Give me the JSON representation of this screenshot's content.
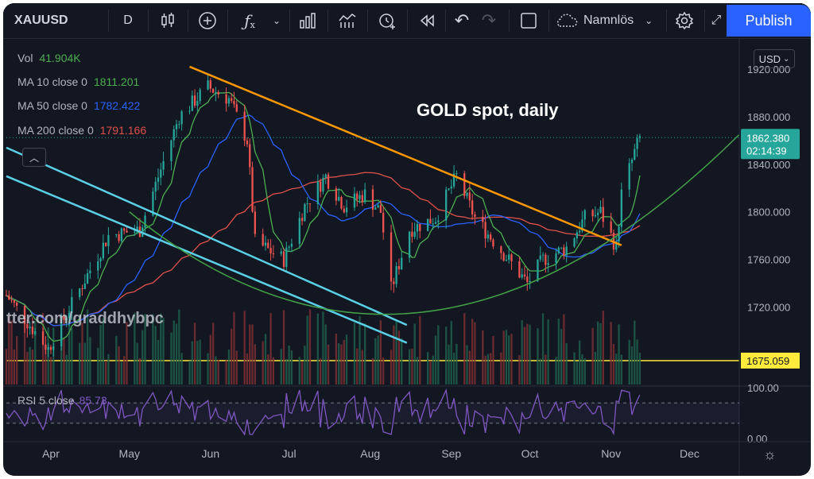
{
  "toolbar": {
    "symbol": "XAUUSD",
    "interval": "D",
    "layout_name": "Namnlös",
    "publish_label": "Publish",
    "icons": [
      "candles-icon",
      "add-compare-icon",
      "indicators-icon",
      "chevron-down-icon",
      "templates-icon",
      "alert-icon",
      "replay-icon",
      "undo-icon",
      "redo-icon",
      "fullscreen-icon",
      "cloud-icon",
      "settings-icon"
    ]
  },
  "legend": {
    "vol_label": "Vol",
    "vol_value": "41.904K",
    "ma10_label": "MA 10 close 0",
    "ma10_value": "1811.201",
    "ma50_label": "MA 50 close 0",
    "ma50_value": "1782.422",
    "ma200_label": "MA 200 close 0",
    "ma200_value": "1791.166",
    "rsi_label": "RSI 5 close",
    "rsi_value": "85.73"
  },
  "currency_button": "USD",
  "annotation": "GOLD spot, daily",
  "watermark": "tter.com/graddhybpc",
  "colors": {
    "background": "#131722",
    "up": "#26a69a",
    "down": "#ef5350",
    "ma10": "#4caf50",
    "ma50": "#2962ff",
    "ma200": "#e0514a",
    "trendline": "#ff9800",
    "channel": "#5ad0e6",
    "curve": "#43a047",
    "hline": "#ffeb3b",
    "rsi": "#7e57c2"
  },
  "chart_data": [
    {
      "type": "candlestick",
      "title": "GOLD spot, daily",
      "x_tick_labels": [
        "Apr",
        "May",
        "Jun",
        "Jul",
        "Aug",
        "Sep",
        "Oct",
        "Nov",
        "Dec"
      ],
      "y_tick_labels": [
        "1920.000",
        "1880.000",
        "1840.000",
        "1800.000",
        "1760.000",
        "1720.000"
      ],
      "ylim": [
        1655,
        1946
      ],
      "last_price": "1862.380",
      "countdown": "02:14:39",
      "horizontal_line": {
        "value": 1675.059,
        "label": "1675.059"
      },
      "trendline": {
        "from": {
          "x": "2021-05-24",
          "y": 1922
        },
        "to": {
          "x": "2021-11-05",
          "y": 1772
        }
      },
      "channel_lines": [
        {
          "from": {
            "x": "2021-03-15",
            "y": 1854
          },
          "to": {
            "x": "2021-08-15",
            "y": 1705
          }
        },
        {
          "from": {
            "x": "2021-03-15",
            "y": 1830
          },
          "to": {
            "x": "2021-08-15",
            "y": 1690
          }
        }
      ],
      "volume_series_visible": true,
      "moving_averages": [
        "MA 10 close 0",
        "MA 50 close 0",
        "MA 200 close 0"
      ],
      "grid": false
    },
    {
      "type": "line",
      "title": "RSI 5 close",
      "y_tick_labels": [
        "100.00",
        "0.00"
      ],
      "ylim": [
        0,
        100
      ],
      "last_value": 85.73,
      "bands": [
        70,
        30
      ]
    }
  ]
}
